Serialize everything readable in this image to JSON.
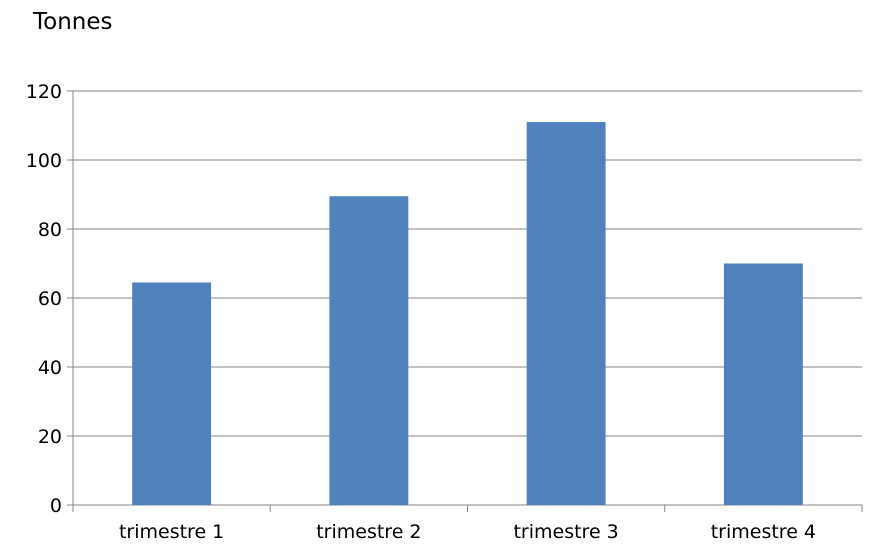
{
  "chart_data": {
    "type": "bar",
    "unit_label": "Tonnes",
    "categories": [
      "trimestre 1",
      "trimestre 2",
      "trimestre 3",
      "trimestre 4"
    ],
    "values": [
      64.5,
      89.5,
      111,
      70
    ],
    "ylim": [
      0,
      120
    ],
    "yticks": [
      0,
      20,
      40,
      60,
      80,
      100,
      120
    ],
    "grid": true,
    "legend": "none",
    "colors": {
      "bar": "#4f81bd",
      "grid": "#868686",
      "axis": "#868686",
      "text": "#000000"
    }
  }
}
